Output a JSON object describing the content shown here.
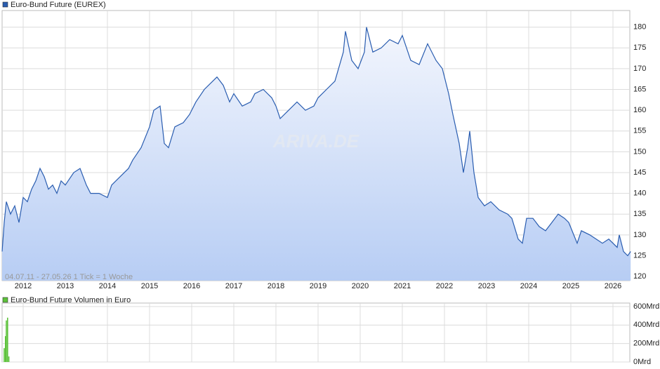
{
  "chart_data": [
    {
      "type": "line",
      "series": [
        {
          "name": "Euro-Bund Future (EUREX)",
          "color": "#2a5db0",
          "x": [
            2011.5,
            2011.55,
            2011.6,
            2011.7,
            2011.8,
            2011.9,
            2012.0,
            2012.1,
            2012.2,
            2012.3,
            2012.4,
            2012.5,
            2012.6,
            2012.7,
            2012.8,
            2012.9,
            2013.0,
            2013.2,
            2013.35,
            2013.5,
            2013.6,
            2013.8,
            2014.0,
            2014.1,
            2014.3,
            2014.5,
            2014.6,
            2014.8,
            2015.0,
            2015.1,
            2015.25,
            2015.35,
            2015.45,
            2015.6,
            2015.8,
            2015.95,
            2016.1,
            2016.3,
            2016.5,
            2016.6,
            2016.75,
            2016.9,
            2017.0,
            2017.2,
            2017.4,
            2017.5,
            2017.7,
            2017.9,
            2018.0,
            2018.1,
            2018.3,
            2018.5,
            2018.7,
            2018.9,
            2019.0,
            2019.2,
            2019.4,
            2019.6,
            2019.65,
            2019.8,
            2019.95,
            2020.1,
            2020.15,
            2020.3,
            2020.5,
            2020.7,
            2020.9,
            2021.0,
            2021.2,
            2021.4,
            2021.6,
            2021.8,
            2021.95,
            2022.1,
            2022.2,
            2022.35,
            2022.45,
            2022.55,
            2022.6,
            2022.7,
            2022.8,
            2022.95,
            2023.1,
            2023.3,
            2023.5,
            2023.6,
            2023.75,
            2023.85,
            2023.95,
            2024.1,
            2024.25,
            2024.4,
            2024.55,
            2024.7,
            2024.85,
            2024.95,
            2025.15,
            2025.25,
            2025.45,
            2025.6,
            2025.75,
            2025.9,
            2026.1,
            2026.15,
            2026.25,
            2026.35,
            2026.42
          ],
          "values": [
            126,
            133,
            138,
            135,
            137,
            133,
            139,
            138,
            141,
            143,
            146,
            144,
            141,
            142,
            140,
            143,
            142,
            145,
            146,
            142,
            140,
            140,
            139,
            142,
            144,
            146,
            148,
            151,
            156,
            160,
            161,
            152,
            151,
            156,
            157,
            159,
            162,
            165,
            167,
            168,
            166,
            162,
            164,
            161,
            162,
            164,
            165,
            163,
            161,
            158,
            160,
            162,
            160,
            161,
            163,
            165,
            167,
            174,
            179,
            172,
            170,
            174,
            180,
            174,
            175,
            177,
            176,
            178,
            172,
            171,
            176,
            172,
            170,
            164,
            159,
            152,
            145,
            151,
            155,
            145,
            139,
            137,
            138,
            136,
            135,
            134,
            129,
            128,
            134,
            134,
            132,
            131,
            133,
            135,
            134,
            133,
            128,
            131,
            130,
            129,
            128,
            129,
            127,
            130,
            126,
            125,
            126
          ]
        }
      ],
      "xlim": [
        2011.5,
        2026.4
      ],
      "xticks": [
        2012,
        2013,
        2014,
        2015,
        2016,
        2017,
        2018,
        2019,
        2020,
        2021,
        2022,
        2023,
        2024,
        2025,
        2026
      ],
      "ylim": [
        119,
        184
      ],
      "yticks": [
        120,
        125,
        130,
        135,
        140,
        145,
        150,
        155,
        160,
        165,
        170,
        175,
        180
      ],
      "annotation": "04.07.11 - 27.05.26   1 Tick = 1 Woche",
      "watermark": "ARIVA.DE",
      "grid": true
    },
    {
      "type": "bar",
      "series": [
        {
          "name": "Euro-Bund Future Volumen in Euro",
          "color": "#5cc23a",
          "x": [
            2011.55,
            2011.58,
            2011.6,
            2011.63,
            2011.66
          ],
          "values": [
            150,
            280,
            450,
            480,
            60
          ]
        }
      ],
      "xlim": [
        2011.5,
        2026.4
      ],
      "xticks": [
        2012,
        2013,
        2014,
        2015,
        2016,
        2017,
        2018,
        2019,
        2020,
        2021,
        2022,
        2023,
        2024,
        2025,
        2026
      ],
      "ylim": [
        0,
        638
      ],
      "yticks": [
        {
          "value": 0,
          "label": "0Mrd"
        },
        {
          "value": 200,
          "label": "200Mrd"
        },
        {
          "value": 400,
          "label": "400Mrd"
        },
        {
          "value": 600,
          "label": "600Mrd"
        }
      ],
      "grid": true
    }
  ]
}
